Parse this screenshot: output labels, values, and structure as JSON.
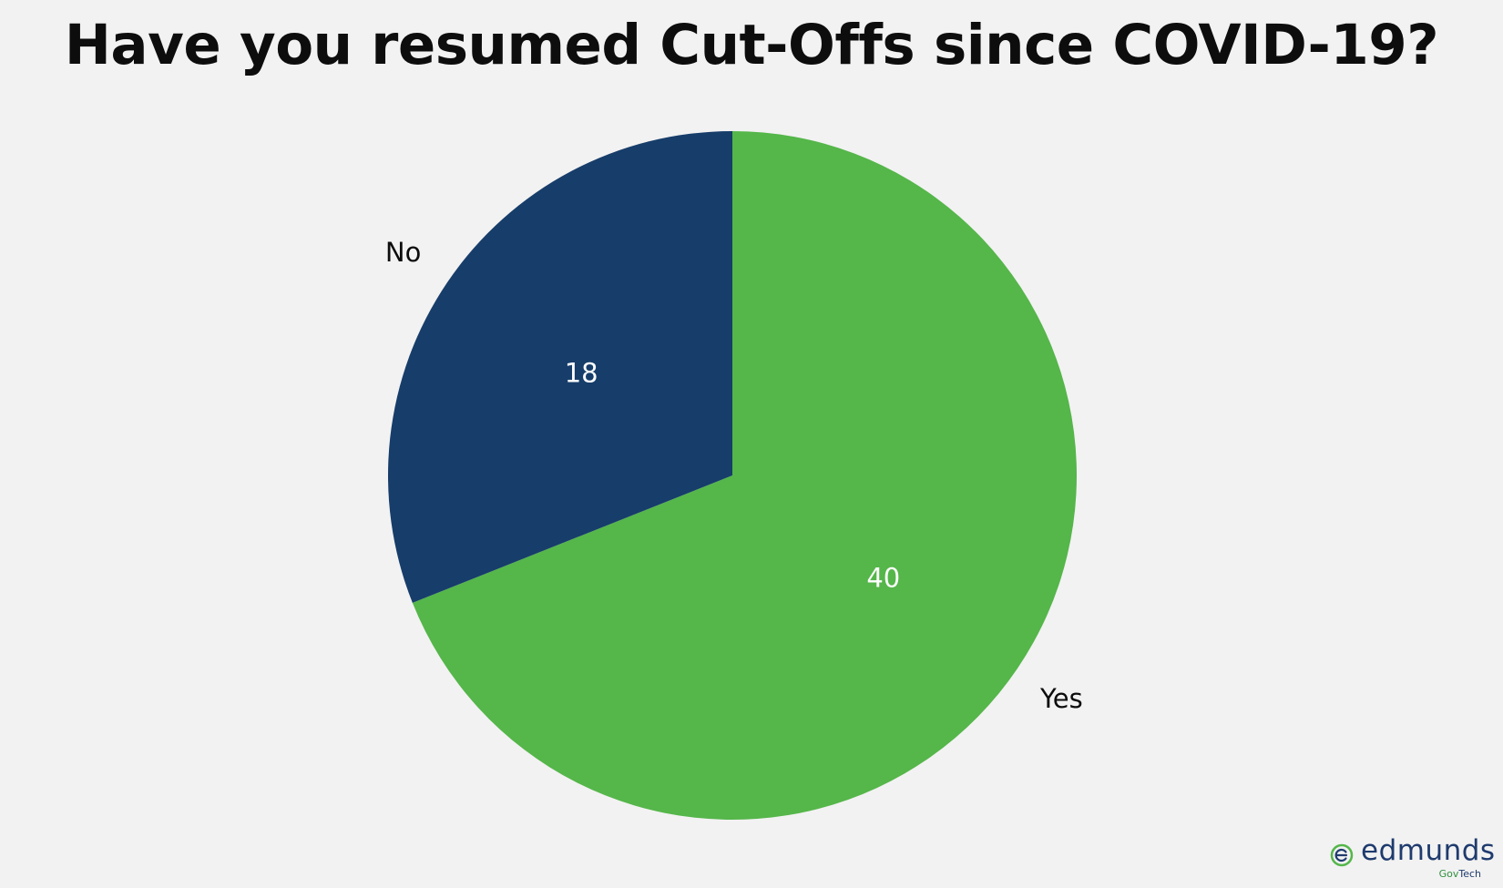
{
  "title": "Have you resumed Cut-Offs since COVID-19?",
  "chart_data": {
    "type": "pie",
    "title": "Have you resumed Cut-Offs since COVID-19?",
    "categories": [
      "Yes",
      "No"
    ],
    "values": [
      40,
      18
    ],
    "colors": [
      "#55b64a",
      "#173d6a"
    ],
    "start": "12 o'clock",
    "direction": "clockwise",
    "data_labels_color": "#ffffff",
    "category_labels": "outside"
  },
  "logo": {
    "word": "edmunds",
    "sub_a": "Gov",
    "sub_b": "Tech",
    "icon": "edmunds-e-logo-icon",
    "colors": {
      "navy": "#1f3b6e",
      "green": "#55b64a"
    }
  }
}
